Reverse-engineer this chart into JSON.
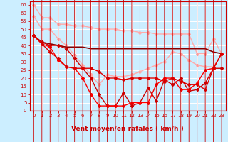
{
  "xlabel": "Vent moyen/en rafales ( km/h )",
  "background_color": "#cceeff",
  "grid_color": "#aadddd",
  "xlim": [
    -0.5,
    23.5
  ],
  "ylim": [
    0,
    67
  ],
  "yticks": [
    0,
    5,
    10,
    15,
    20,
    25,
    30,
    35,
    40,
    45,
    50,
    55,
    60,
    65
  ],
  "xticks": [
    0,
    1,
    2,
    3,
    4,
    5,
    6,
    7,
    8,
    9,
    10,
    11,
    12,
    13,
    14,
    15,
    16,
    17,
    18,
    19,
    20,
    21,
    22,
    23
  ],
  "lines": [
    {
      "x": [
        0,
        1,
        2,
        3,
        4,
        5,
        6,
        7,
        8,
        9,
        10,
        11,
        12,
        13,
        14,
        15,
        16,
        17,
        18,
        19,
        20,
        21,
        22,
        23
      ],
      "y": [
        65,
        57,
        57,
        53,
        53,
        52,
        52,
        51,
        50,
        50,
        50,
        49,
        49,
        48,
        48,
        47,
        47,
        47,
        47,
        47,
        35,
        35,
        44,
        35
      ],
      "color": "#ffaaaa",
      "lw": 1.0,
      "marker": "D",
      "ms": 2.0
    },
    {
      "x": [
        0,
        1,
        2,
        3,
        4,
        5,
        6,
        7,
        8,
        9,
        10,
        11,
        12,
        13,
        14,
        15,
        16,
        17,
        18,
        19,
        20,
        21,
        22,
        23
      ],
      "y": [
        58,
        50,
        50,
        44,
        40,
        34,
        28,
        22,
        16,
        22,
        21,
        21,
        22,
        24,
        26,
        28,
        30,
        36,
        35,
        31,
        28,
        27,
        27,
        35
      ],
      "color": "#ffaaaa",
      "lw": 1.0,
      "marker": "D",
      "ms": 2.0
    },
    {
      "x": [
        0,
        1,
        2,
        3,
        4,
        5,
        6,
        7,
        8,
        9,
        10,
        11,
        12,
        13,
        14,
        15,
        16,
        17,
        18,
        19,
        20,
        21,
        22,
        23
      ],
      "y": [
        46,
        42,
        41,
        40,
        39,
        39,
        39,
        38,
        38,
        38,
        38,
        38,
        38,
        38,
        38,
        38,
        38,
        38,
        38,
        38,
        38,
        38,
        36,
        35
      ],
      "color": "#880000",
      "lw": 1.2,
      "marker": null,
      "ms": 0
    },
    {
      "x": [
        0,
        1,
        2,
        3,
        4,
        5,
        6,
        7,
        8,
        9,
        10,
        11,
        12,
        13,
        14,
        15,
        16,
        17,
        18,
        19,
        20,
        21,
        22,
        23
      ],
      "y": [
        46,
        42,
        40,
        40,
        38,
        32,
        26,
        20,
        10,
        3,
        3,
        11,
        3,
        5,
        14,
        6,
        19,
        16,
        20,
        12,
        13,
        17,
        26,
        26
      ],
      "color": "#cc0000",
      "lw": 1.0,
      "marker": "D",
      "ms": 2.0
    },
    {
      "x": [
        0,
        1,
        2,
        3,
        4,
        5,
        6,
        7,
        8,
        9,
        10,
        11,
        12,
        13,
        14,
        15,
        16,
        17,
        18,
        19,
        20,
        21,
        22,
        23
      ],
      "y": [
        46,
        41,
        39,
        31,
        27,
        26,
        20,
        10,
        3,
        3,
        3,
        3,
        5,
        5,
        5,
        16,
        20,
        20,
        13,
        13,
        17,
        25,
        26,
        35
      ],
      "color": "#ff0000",
      "lw": 1.0,
      "marker": "D",
      "ms": 2.0
    },
    {
      "x": [
        0,
        1,
        2,
        3,
        4,
        5,
        6,
        7,
        8,
        9,
        10,
        11,
        12,
        13,
        14,
        15,
        16,
        17,
        18,
        19,
        20,
        21,
        22,
        23
      ],
      "y": [
        46,
        41,
        36,
        32,
        27,
        26,
        26,
        26,
        24,
        20,
        20,
        19,
        20,
        20,
        20,
        20,
        18,
        20,
        18,
        16,
        16,
        13,
        26,
        35
      ],
      "color": "#dd0000",
      "lw": 1.0,
      "marker": "D",
      "ms": 2.0
    }
  ],
  "arrows_x": [
    0,
    1,
    2,
    3,
    4,
    5,
    6,
    7,
    8,
    9,
    10,
    11,
    12,
    13,
    14,
    15,
    16,
    17,
    18,
    19,
    20,
    21,
    22,
    23
  ],
  "arrow_color": "#cc0000",
  "xlabel_fontsize": 6.5,
  "tick_fontsize": 5.0,
  "tick_color": "#cc0000",
  "spine_color": "#cc0000"
}
